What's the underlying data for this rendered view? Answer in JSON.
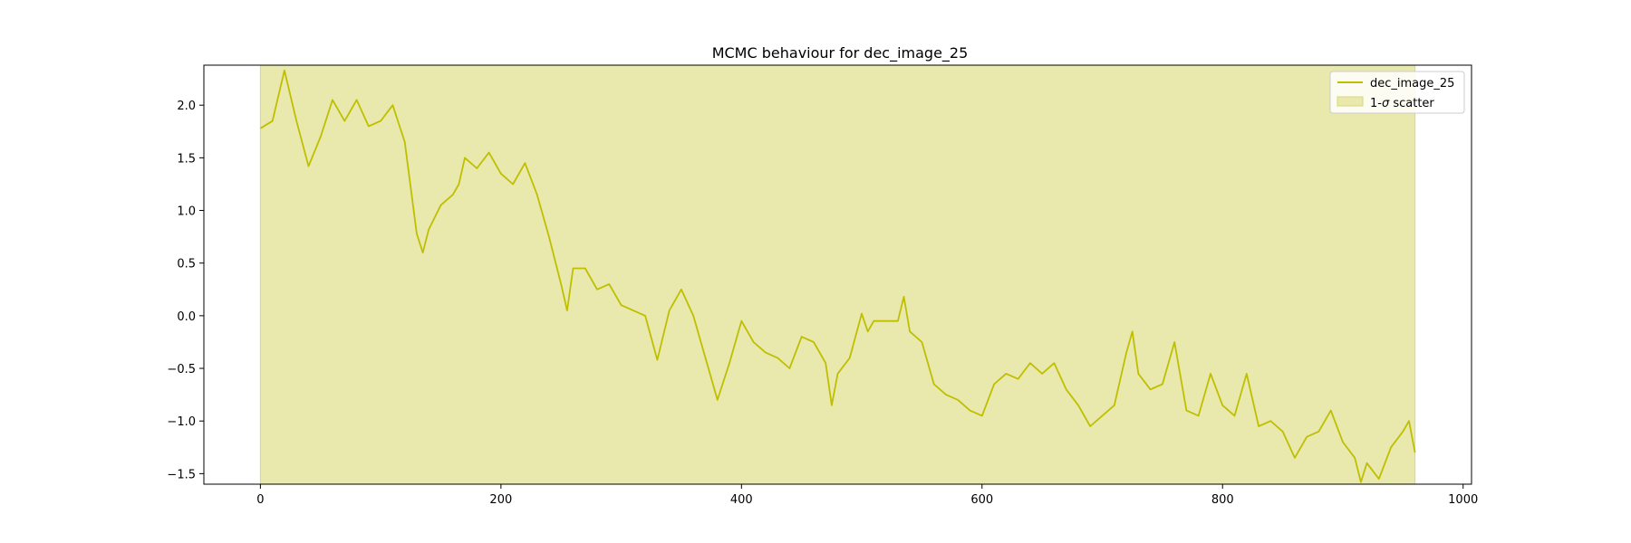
{
  "chart_data": {
    "type": "line",
    "title": "MCMC behaviour for dec_image_25",
    "xlabel": "",
    "ylabel": "",
    "xlim": [
      -47,
      1007
    ],
    "ylim": [
      -1.6,
      2.38
    ],
    "xticks": [
      0,
      200,
      400,
      600,
      800,
      1000
    ],
    "yticks": [
      -1.5,
      -1.0,
      -0.5,
      0.0,
      0.5,
      1.0,
      1.5,
      2.0
    ],
    "xtick_labels": [
      "0",
      "200",
      "400",
      "600",
      "800",
      "1000"
    ],
    "ytick_labels": [
      "−1.5",
      "−1.0",
      "−0.5",
      "0.0",
      "0.5",
      "1.0",
      "1.5",
      "2.0"
    ],
    "grid": false,
    "legend_position": "top-right",
    "colors": {
      "line": "#bfbf00",
      "band_fill": "#e9e9ae",
      "band_edge": "#d8d878"
    },
    "band": {
      "name": "1-σ scatter",
      "x_range": [
        0,
        960
      ],
      "y_range": [
        -1.6,
        2.38
      ]
    },
    "series": [
      {
        "name": "dec_image_25",
        "x": [
          0,
          10,
          20,
          30,
          40,
          50,
          60,
          70,
          80,
          90,
          100,
          110,
          120,
          130,
          135,
          140,
          150,
          160,
          165,
          170,
          180,
          190,
          200,
          210,
          220,
          230,
          240,
          250,
          255,
          260,
          270,
          280,
          290,
          300,
          310,
          320,
          330,
          340,
          350,
          360,
          370,
          380,
          390,
          400,
          410,
          420,
          430,
          440,
          450,
          460,
          470,
          475,
          480,
          490,
          500,
          505,
          510,
          520,
          530,
          535,
          540,
          550,
          560,
          570,
          580,
          590,
          600,
          610,
          620,
          630,
          640,
          650,
          660,
          670,
          680,
          690,
          700,
          710,
          720,
          725,
          730,
          740,
          750,
          760,
          770,
          780,
          790,
          800,
          810,
          820,
          830,
          840,
          850,
          860,
          870,
          880,
          890,
          900,
          910,
          915,
          920,
          930,
          940,
          950,
          955,
          960
        ],
        "y": [
          1.78,
          1.85,
          2.33,
          1.85,
          1.42,
          1.7,
          2.05,
          1.85,
          2.05,
          1.8,
          1.85,
          2.0,
          1.65,
          0.78,
          0.6,
          0.82,
          1.05,
          1.15,
          1.25,
          1.5,
          1.4,
          1.55,
          1.35,
          1.25,
          1.45,
          1.15,
          0.75,
          0.3,
          0.05,
          0.45,
          0.45,
          0.25,
          0.3,
          0.1,
          0.05,
          0.0,
          -0.42,
          0.05,
          0.25,
          0.0,
          -0.4,
          -0.8,
          -0.45,
          -0.05,
          -0.25,
          -0.35,
          -0.4,
          -0.5,
          -0.2,
          -0.25,
          -0.45,
          -0.85,
          -0.55,
          -0.4,
          0.02,
          -0.15,
          -0.05,
          -0.05,
          -0.05,
          0.18,
          -0.15,
          -0.25,
          -0.65,
          -0.75,
          -0.8,
          -0.9,
          -0.95,
          -0.65,
          -0.55,
          -0.6,
          -0.45,
          -0.55,
          -0.45,
          -0.7,
          -0.85,
          -1.05,
          -0.95,
          -0.85,
          -0.35,
          -0.15,
          -0.55,
          -0.7,
          -0.65,
          -0.25,
          -0.9,
          -0.95,
          -0.55,
          -0.85,
          -0.95,
          -0.55,
          -1.05,
          -1.0,
          -1.1,
          -1.35,
          -1.15,
          -1.1,
          -0.9,
          -1.2,
          -1.35,
          -1.58,
          -1.4,
          -1.55,
          -1.25,
          -1.1,
          -1.0,
          -1.3
        ]
      }
    ]
  },
  "legend": {
    "line_label": "dec_image_25",
    "band_label_prefix": "1-",
    "band_label_sigma": "σ",
    "band_label_suffix": " scatter"
  }
}
